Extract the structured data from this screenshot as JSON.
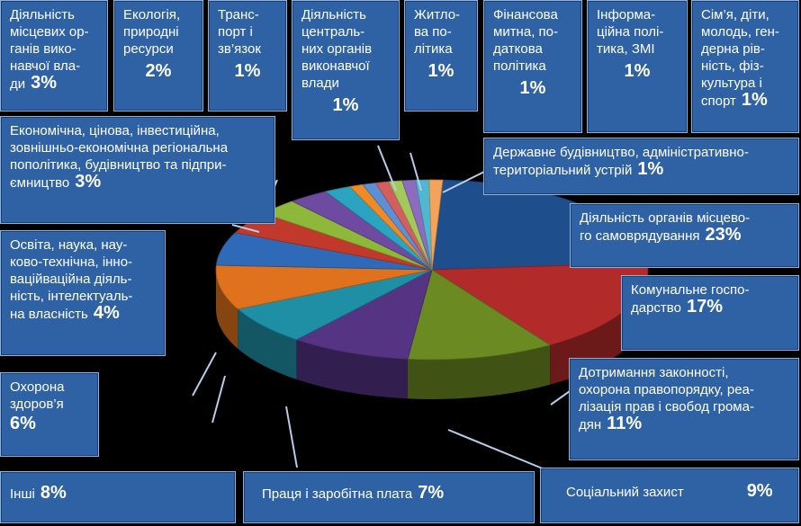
{
  "chart_data": {
    "type": "pie",
    "slices": [
      {
        "label": "Діяльність органів місцевого самоврядування",
        "value": 23,
        "value_text": "23%",
        "color": "#1f4e8c"
      },
      {
        "label": "Комунальне господарство",
        "value": 17,
        "value_text": "17%",
        "color": "#b32a2a"
      },
      {
        "label": "Дотримання законності, охорона правопорядку, реалізація прав і свобод громадян",
        "value": 11,
        "value_text": "11%",
        "color": "#6b8a22"
      },
      {
        "label": "Соціальний захист",
        "value": 9,
        "value_text": "9%",
        "color": "#553483"
      },
      {
        "label": "Праця і заробітна плата",
        "value": 7,
        "value_text": "7%",
        "color": "#1f8fa6"
      },
      {
        "label": "Інші",
        "value": 8,
        "value_text": "8%",
        "color": "#e0711d"
      },
      {
        "label": "Охорона здоров'я",
        "value": 6,
        "value_text": "6%",
        "color": "#2f6ab8"
      },
      {
        "label": "Освіта, наука, науково-технічна, інноваційна діяльність, інтелектуальна власність",
        "value": 4,
        "value_text": "4%",
        "color": "#c0392b"
      },
      {
        "label": "Економічна, цінова, інвестиційна, зовнішньо-економічна регіональна пополітика, будівництво та підприємництво",
        "value": 3,
        "value_text": "3%",
        "color": "#8db83a"
      },
      {
        "label": "Діяльність місцевих органів виконавчої влади",
        "value": 3,
        "value_text": "3%",
        "color": "#6e4aa0"
      },
      {
        "label": "Екологія, природні ресурси",
        "value": 2,
        "value_text": "2%",
        "color": "#2aa4c0"
      },
      {
        "label": "Транспорт і зв'язок",
        "value": 1,
        "value_text": "1%",
        "color": "#f08a24"
      },
      {
        "label": "Діяльність центральних органів виконавчої влади",
        "value": 1,
        "value_text": "1%",
        "color": "#5d8fd6"
      },
      {
        "label": "Житлова політика",
        "value": 1,
        "value_text": "1%",
        "color": "#d25f5f"
      },
      {
        "label": "Фінансова митна, податкова політика",
        "value": 1,
        "value_text": "1%",
        "color": "#a4c95a"
      },
      {
        "label": "Інформаційна політика, ЗМІ",
        "value": 1,
        "value_text": "1%",
        "color": "#8b6cbf"
      },
      {
        "label": "Сім'я, діти, молодь, гендерна рівність, фізкультура і спорт",
        "value": 1,
        "value_text": "1%",
        "color": "#4fb8d0"
      },
      {
        "label": "Державне будівництво, адміністративно-територіальний устрій",
        "value": 1,
        "value_text": "1%",
        "color": "#f3a35a"
      }
    ]
  },
  "callouts": [
    {
      "id": "misc-vlady",
      "label": "Діяльність\nмісцевих ор-\nганів вико-\nнавчої вла-\nди",
      "value": "3%"
    },
    {
      "id": "ekolohiya",
      "label": "Екологія,\nприродні\nресурси",
      "value": "2%"
    },
    {
      "id": "transport",
      "label": "Транс-\nпорт і\nзв’язок",
      "value": "1%"
    },
    {
      "id": "tsentr-vlady",
      "label": "Діяльність\nцентраль-\nних органів\nвиконавчої\nвлади",
      "value": "1%"
    },
    {
      "id": "zhytlova",
      "label": "Житло-\nва по-\nлітика",
      "value": "1%"
    },
    {
      "id": "finansova",
      "label": "Фінансова\nмитна, по-\nдаткова\nполітика",
      "value": "1%"
    },
    {
      "id": "informatsiyna",
      "label": "Інформа-\nційна полі-\nтика, ЗМІ",
      "value": "1%"
    },
    {
      "id": "simya",
      "label": "Сім’я, діти,\nмолодь, ген-\nдерна рів-\nність, фіз-\nкультура  і\nспорт",
      "value": "1%"
    },
    {
      "id": "ekonomichna",
      "label": "Економічна, цінова, інвестиційна,\nзовнішньо-економічна регіональна\nпополітика, будівництво та підпри-\nємництво",
      "value": "3%"
    },
    {
      "id": "derzh-budivn",
      "label": "Державне будівництво, адміністративно-\nтериторіальний устрій",
      "value": "1%"
    },
    {
      "id": "organy-misc",
      "label": "Діяльність органів місцево-\nго самоврядування",
      "value": "23%"
    },
    {
      "id": "osvita",
      "label": "Освіта, наука, нау-\nково-технічна, інно-\nваційваційна діяль-\nність, інтелектуаль-\nна власність",
      "value": "4%"
    },
    {
      "id": "komunalne",
      "label": "Комунальне  госпо-\nдарство",
      "value": "17%"
    },
    {
      "id": "okhorona-zd",
      "label": "Охорона\nздоров’я",
      "value": "6%"
    },
    {
      "id": "zakonnist",
      "label": "Дотримання законності,\nохорона правопорядку, реа-\nлізація прав і свобод грома-\nдян",
      "value": "11%"
    },
    {
      "id": "inshi",
      "label": "Інші",
      "value": "8%"
    },
    {
      "id": "pratsia",
      "label": "Праця і заробітна плата",
      "value": "7%"
    },
    {
      "id": "sotsialnyi",
      "label": "Соціальний захист",
      "value": "9%"
    }
  ]
}
